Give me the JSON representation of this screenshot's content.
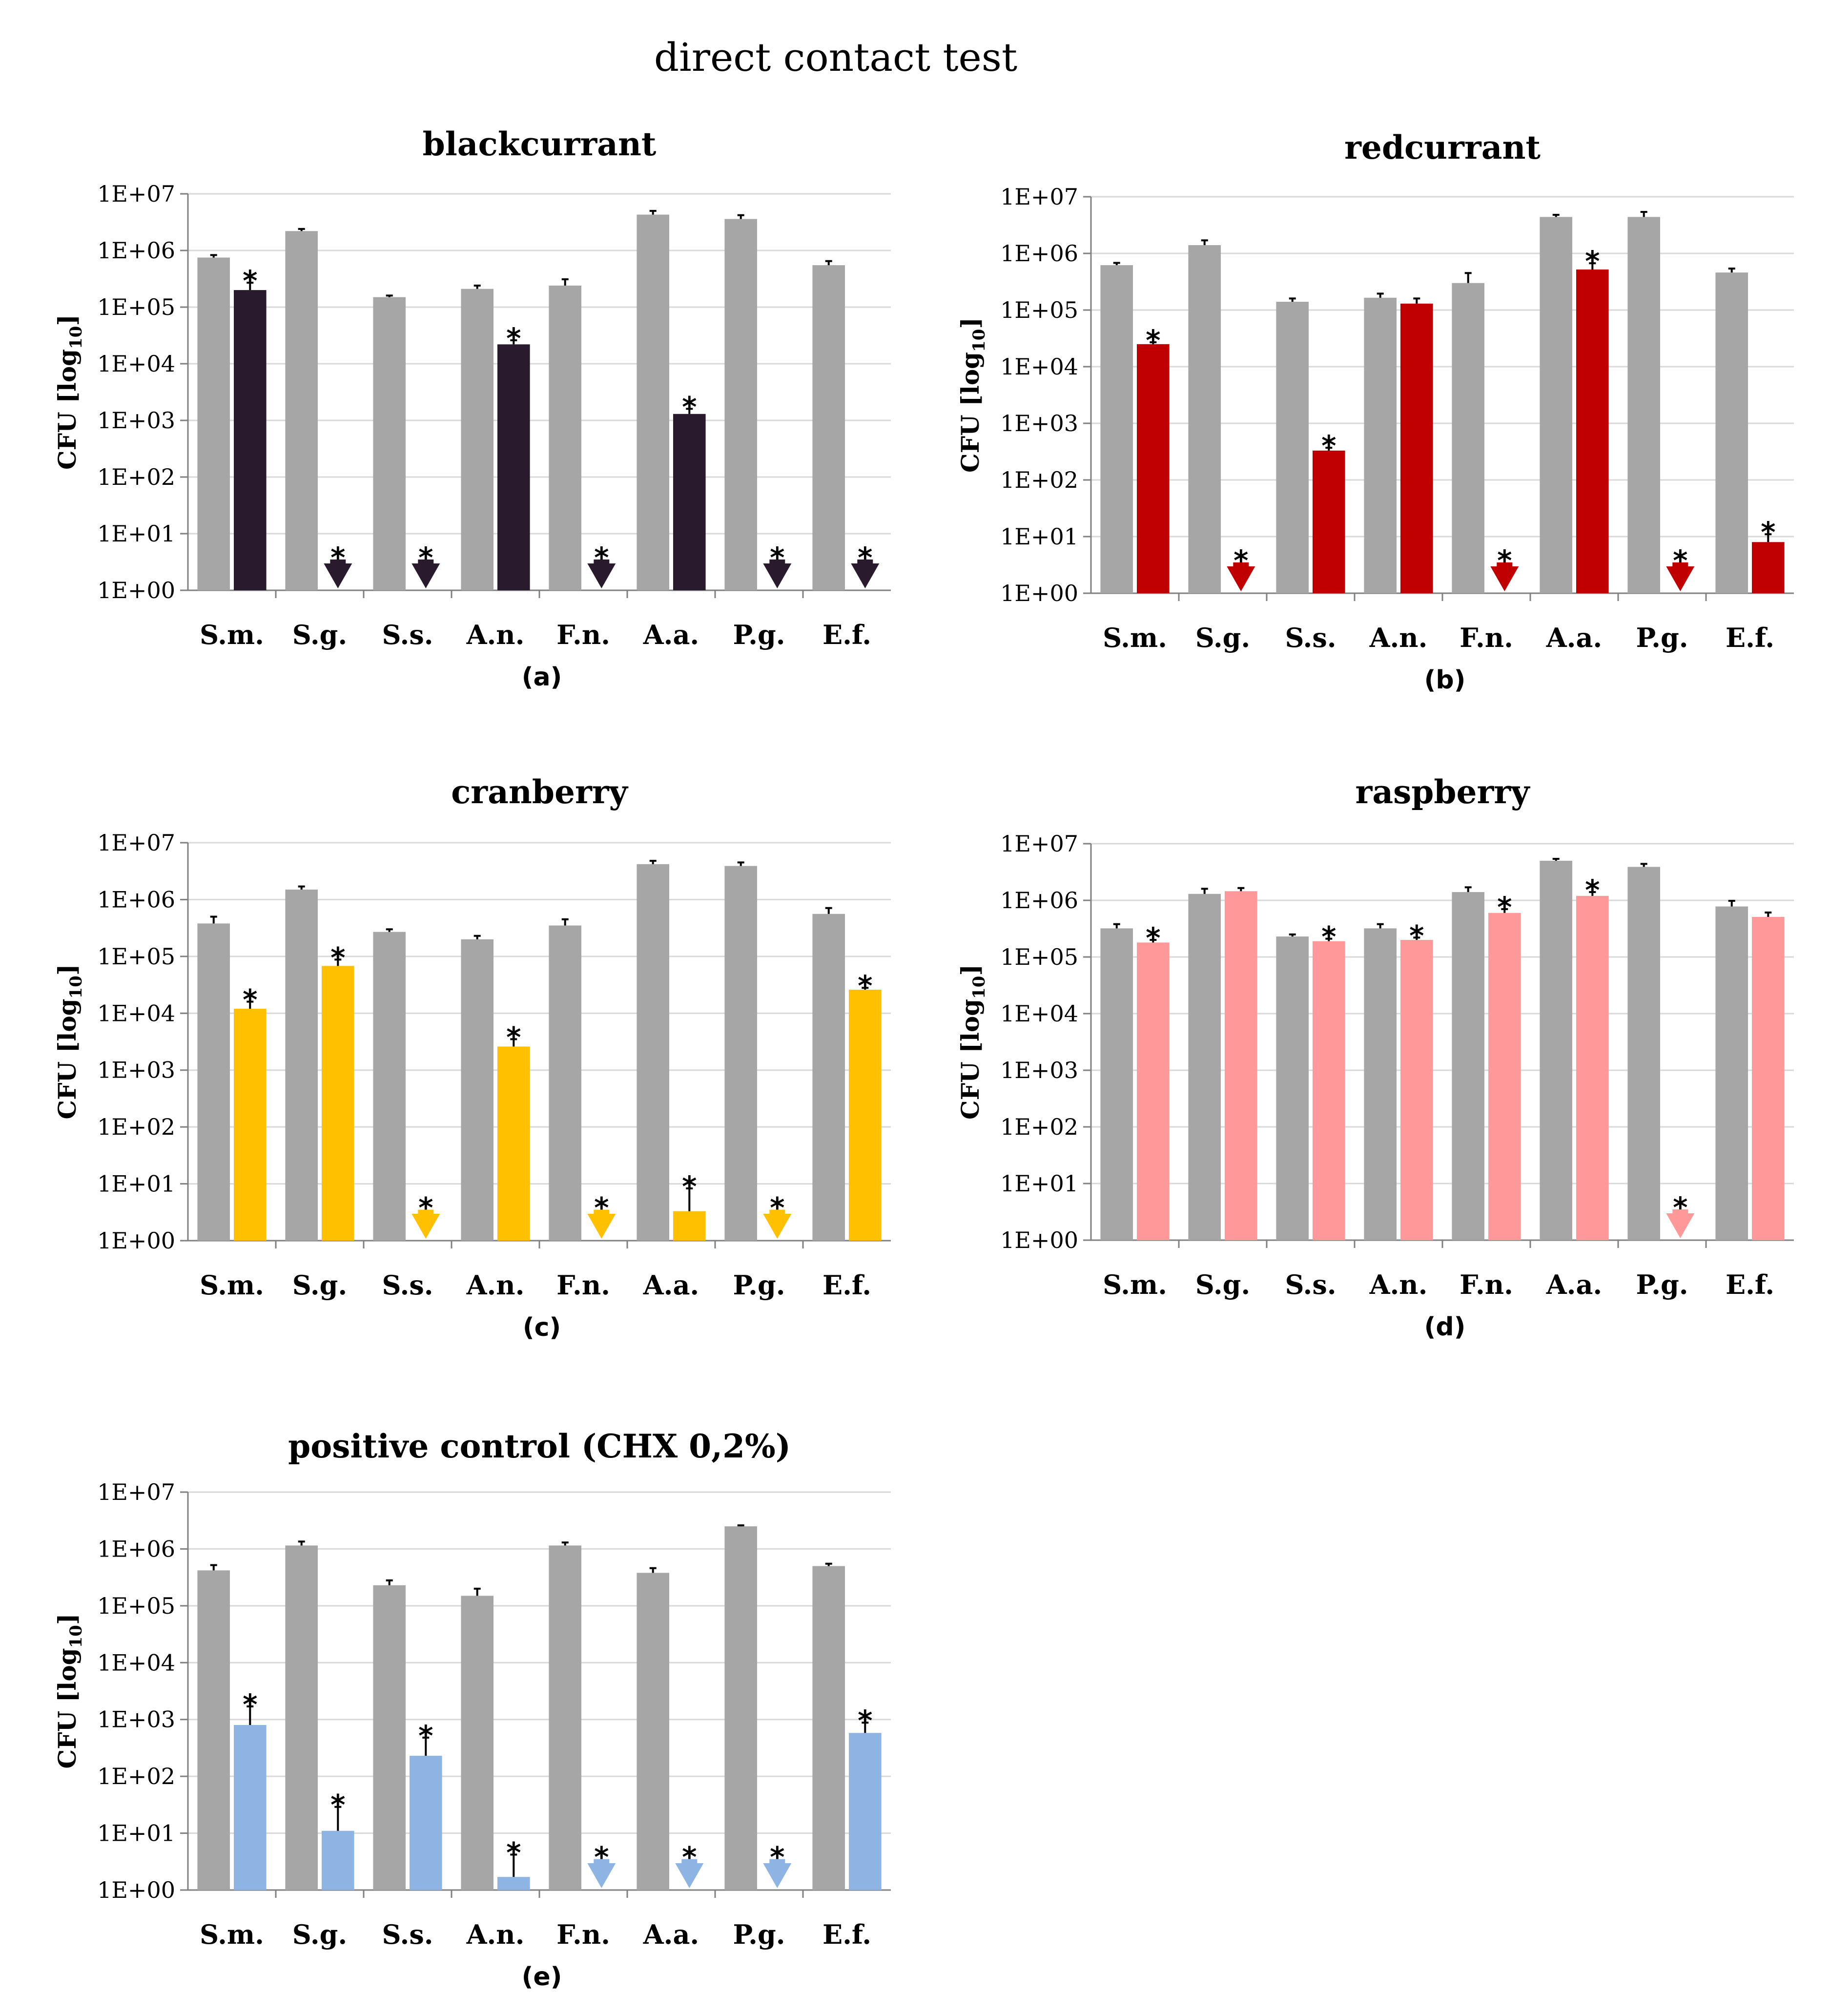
{
  "title": "direct contact test",
  "colors": {
    "control": "#a6a6a6",
    "grid": "#d9d9d9",
    "axis": "#808080"
  },
  "chart_data": [
    {
      "type": "bar",
      "title": "blackcurrant",
      "panel_label": "(a)",
      "ylabel": "CFU [log",
      "ylabel_sub": "10",
      "ylabel_end": "]",
      "yscale": "log",
      "ylim": [
        1,
        10000000
      ],
      "yticks": [
        "1E+00",
        "1E+01",
        "1E+02",
        "1E+03",
        "1E+04",
        "1E+05",
        "1E+06",
        "1E+07"
      ],
      "categories": [
        "S.m.",
        "S.g.",
        "S.s.",
        "A.n.",
        "F.n.",
        "A.a.",
        "P.g.",
        "E.f."
      ],
      "treatment_color": "#2a1a2e",
      "series": [
        {
          "name": "control",
          "values": [
            750000,
            2200000,
            150000,
            210000,
            240000,
            4300000,
            3600000,
            550000
          ],
          "err": [
            80000,
            200000,
            10000,
            30000,
            70000,
            700000,
            600000,
            100000
          ]
        },
        {
          "name": "blackcurrant",
          "values": [
            200000,
            null,
            null,
            22000,
            null,
            1300,
            null,
            null
          ],
          "err": [
            70000,
            null,
            null,
            4000,
            null,
            300,
            null,
            null
          ],
          "below_detection": [
            false,
            true,
            true,
            false,
            true,
            false,
            true,
            true
          ],
          "significant": [
            true,
            true,
            true,
            true,
            true,
            true,
            true,
            true
          ]
        }
      ]
    },
    {
      "type": "bar",
      "title": "redcurrant",
      "panel_label": "(b)",
      "ylabel": "CFU [log",
      "ylabel_sub": "10",
      "ylabel_end": "]",
      "yscale": "log",
      "ylim": [
        1,
        10000000
      ],
      "yticks": [
        "1E+00",
        "1E+01",
        "1E+02",
        "1E+03",
        "1E+04",
        "1E+05",
        "1E+06",
        "1E+07"
      ],
      "categories": [
        "S.m.",
        "S.g.",
        "S.s.",
        "A.n.",
        "F.n.",
        "A.a.",
        "P.g.",
        "E.f."
      ],
      "treatment_color": "#c00000",
      "series": [
        {
          "name": "control",
          "values": [
            620000,
            1400000,
            140000,
            165000,
            300000,
            4400000,
            4400000,
            460000
          ],
          "err": [
            60000,
            300000,
            20000,
            30000,
            150000,
            400000,
            1000000,
            80000
          ]
        },
        {
          "name": "redcurrant",
          "values": [
            25000,
            null,
            330,
            130000,
            null,
            520000,
            null,
            8
          ],
          "err": [
            2000,
            null,
            40,
            30000,
            null,
            150000,
            null,
            3
          ],
          "below_detection": [
            false,
            true,
            false,
            false,
            true,
            false,
            true,
            false
          ],
          "significant": [
            true,
            true,
            true,
            false,
            true,
            true,
            true,
            true
          ]
        }
      ]
    },
    {
      "type": "bar",
      "title": "cranberry",
      "panel_label": "(c)",
      "ylabel": "CFU [log",
      "ylabel_sub": "10",
      "ylabel_end": "]",
      "yscale": "log",
      "ylim": [
        1,
        10000000
      ],
      "yticks": [
        "1E+00",
        "1E+01",
        "1E+02",
        "1E+03",
        "1E+04",
        "1E+05",
        "1E+06",
        "1E+07"
      ],
      "categories": [
        "S.m.",
        "S.g.",
        "S.s.",
        "A.n.",
        "F.n.",
        "A.a.",
        "P.g.",
        "E.f."
      ],
      "treatment_color": "#ffc000",
      "series": [
        {
          "name": "control",
          "values": [
            380000,
            1500000,
            270000,
            200000,
            350000,
            4200000,
            3900000,
            560000
          ],
          "err": [
            120000,
            200000,
            30000,
            30000,
            100000,
            600000,
            600000,
            150000
          ]
        },
        {
          "name": "cranberry",
          "values": [
            12000,
            68000,
            null,
            2600,
            null,
            3.3,
            null,
            26000
          ],
          "err": [
            4000,
            20000,
            null,
            900,
            null,
            5,
            null,
            2000
          ],
          "below_detection": [
            false,
            false,
            true,
            false,
            true,
            false,
            true,
            false
          ],
          "significant": [
            true,
            true,
            true,
            true,
            true,
            true,
            true,
            true
          ]
        }
      ]
    },
    {
      "type": "bar",
      "title": "raspberry",
      "panel_label": "(d)",
      "ylabel": "CFU [log",
      "ylabel_sub": "10",
      "ylabel_end": "]",
      "yscale": "log",
      "ylim": [
        1,
        10000000
      ],
      "yticks": [
        "1E+00",
        "1E+01",
        "1E+02",
        "1E+03",
        "1E+04",
        "1E+05",
        "1E+06",
        "1E+07"
      ],
      "categories": [
        "S.m.",
        "S.g.",
        "S.s.",
        "A.n.",
        "F.n.",
        "A.a.",
        "P.g.",
        "E.f."
      ],
      "treatment_color": "#ff9999",
      "series": [
        {
          "name": "control",
          "values": [
            320000,
            1300000,
            230000,
            320000,
            1400000,
            5000000,
            3900000,
            780000
          ],
          "err": [
            60000,
            300000,
            20000,
            60000,
            300000,
            400000,
            500000,
            200000
          ]
        },
        {
          "name": "raspberry",
          "values": [
            180000,
            1450000,
            190000,
            200000,
            600000,
            1200000,
            null,
            510000
          ],
          "err": [
            20000,
            200000,
            20000,
            20000,
            100000,
            200000,
            null,
            100000
          ],
          "below_detection": [
            false,
            false,
            false,
            false,
            false,
            false,
            true,
            false
          ],
          "significant": [
            true,
            false,
            true,
            true,
            true,
            true,
            true,
            false
          ]
        }
      ]
    },
    {
      "type": "bar",
      "title": "positive control (CHX 0,2%)",
      "panel_label": "(e)",
      "ylabel": "CFU [log",
      "ylabel_sub": "10",
      "ylabel_end": "]",
      "yscale": "log",
      "ylim": [
        1,
        10000000
      ],
      "yticks": [
        "1E+00",
        "1E+01",
        "1E+02",
        "1E+03",
        "1E+04",
        "1E+05",
        "1E+06",
        "1E+07"
      ],
      "categories": [
        "S.m.",
        "S.g.",
        "S.s.",
        "A.n.",
        "F.n.",
        "A.a.",
        "P.g.",
        "E.f."
      ],
      "treatment_color": "#8db4e2",
      "series": [
        {
          "name": "control",
          "values": [
            420000,
            1150000,
            230000,
            150000,
            1150000,
            380000,
            2500000,
            500000
          ],
          "err": [
            100000,
            200000,
            50000,
            50000,
            150000,
            80000,
            100000,
            50000
          ]
        },
        {
          "name": "CHX 0,2%",
          "values": [
            800,
            11,
            230,
            1.7,
            null,
            null,
            null,
            580
          ],
          "err": [
            900,
            18,
            250,
            2.5,
            null,
            null,
            null,
            300
          ],
          "below_detection": [
            false,
            false,
            false,
            false,
            true,
            true,
            true,
            false
          ],
          "significant": [
            true,
            true,
            true,
            true,
            true,
            true,
            true,
            true
          ]
        }
      ]
    }
  ]
}
